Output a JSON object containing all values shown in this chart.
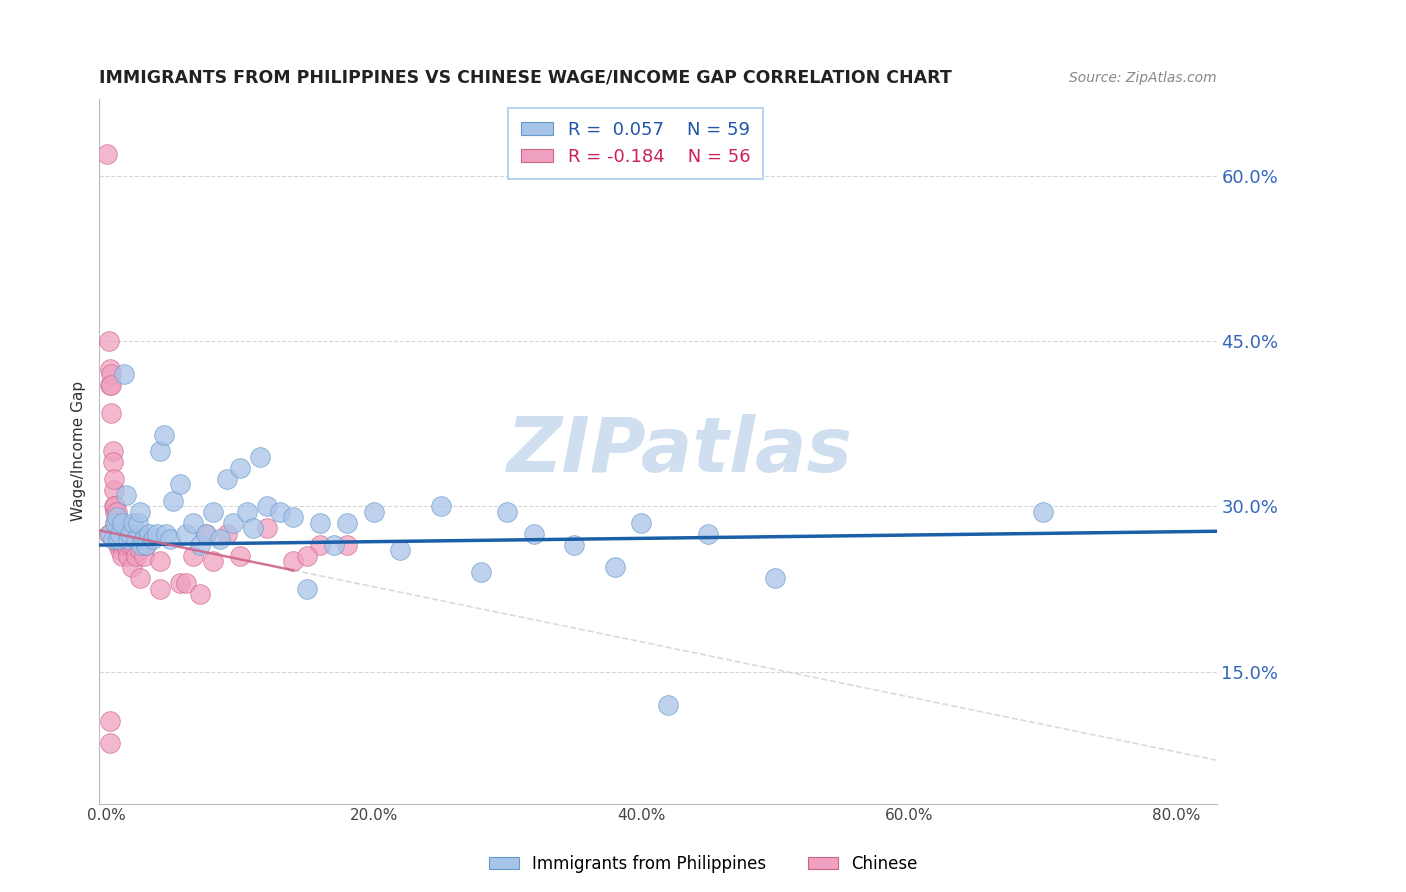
{
  "title": "IMMIGRANTS FROM PHILIPPINES VS CHINESE WAGE/INCOME GAP CORRELATION CHART",
  "source": "Source: ZipAtlas.com",
  "ylabel": "Wage/Income Gap",
  "xlabel_ticks": [
    "0.0%",
    "20.0%",
    "40.0%",
    "60.0%",
    "80.0%"
  ],
  "xlabel_vals": [
    0.0,
    0.2,
    0.4,
    0.6,
    0.8
  ],
  "ylabel_ticks": [
    "15.0%",
    "30.0%",
    "45.0%",
    "60.0%"
  ],
  "ylabel_vals": [
    0.15,
    0.3,
    0.45,
    0.6
  ],
  "ymin": 0.03,
  "ymax": 0.67,
  "xmin": -0.005,
  "xmax": 0.83,
  "r_blue": 0.057,
  "n_blue": 59,
  "r_pink": -0.184,
  "n_pink": 56,
  "blue_color": "#a8c4e8",
  "pink_color": "#f0a0c0",
  "trendline_blue_color": "#1a5fa8",
  "trendline_pink_color": "#cc6688",
  "trendline_pink_ext_color": "#cccccc",
  "watermark_color": "#d0dff0",
  "blue_scatter_x": [
    0.003,
    0.005,
    0.007,
    0.008,
    0.009,
    0.01,
    0.012,
    0.013,
    0.015,
    0.016,
    0.018,
    0.02,
    0.022,
    0.024,
    0.025,
    0.026,
    0.028,
    0.03,
    0.032,
    0.035,
    0.038,
    0.04,
    0.043,
    0.045,
    0.048,
    0.05,
    0.055,
    0.06,
    0.065,
    0.07,
    0.075,
    0.08,
    0.085,
    0.09,
    0.095,
    0.1,
    0.105,
    0.11,
    0.115,
    0.12,
    0.13,
    0.14,
    0.15,
    0.16,
    0.17,
    0.18,
    0.2,
    0.22,
    0.25,
    0.28,
    0.3,
    0.32,
    0.35,
    0.38,
    0.4,
    0.42,
    0.45,
    0.5,
    0.7
  ],
  "blue_scatter_y": [
    0.275,
    0.27,
    0.285,
    0.29,
    0.27,
    0.275,
    0.285,
    0.42,
    0.31,
    0.27,
    0.275,
    0.285,
    0.27,
    0.285,
    0.295,
    0.265,
    0.27,
    0.265,
    0.275,
    0.27,
    0.275,
    0.35,
    0.365,
    0.275,
    0.27,
    0.305,
    0.32,
    0.275,
    0.285,
    0.265,
    0.275,
    0.295,
    0.27,
    0.325,
    0.285,
    0.335,
    0.295,
    0.28,
    0.345,
    0.3,
    0.295,
    0.29,
    0.225,
    0.285,
    0.265,
    0.285,
    0.295,
    0.26,
    0.3,
    0.24,
    0.295,
    0.275,
    0.265,
    0.245,
    0.285,
    0.12,
    0.275,
    0.235,
    0.295
  ],
  "pink_scatter_x": [
    0.001,
    0.002,
    0.002,
    0.003,
    0.003,
    0.004,
    0.004,
    0.004,
    0.005,
    0.005,
    0.006,
    0.006,
    0.006,
    0.007,
    0.007,
    0.007,
    0.008,
    0.008,
    0.008,
    0.009,
    0.009,
    0.01,
    0.01,
    0.01,
    0.011,
    0.012,
    0.013,
    0.014,
    0.015,
    0.016,
    0.018,
    0.019,
    0.02,
    0.022,
    0.025,
    0.025,
    0.028,
    0.03,
    0.04,
    0.055,
    0.06,
    0.065,
    0.07,
    0.075,
    0.09,
    0.1,
    0.12,
    0.14,
    0.16,
    0.18,
    0.025,
    0.08,
    0.15,
    0.04,
    0.003,
    0.003
  ],
  "pink_scatter_y": [
    0.62,
    0.275,
    0.45,
    0.41,
    0.425,
    0.385,
    0.42,
    0.41,
    0.35,
    0.34,
    0.315,
    0.325,
    0.3,
    0.295,
    0.285,
    0.3,
    0.285,
    0.275,
    0.295,
    0.265,
    0.28,
    0.275,
    0.265,
    0.26,
    0.265,
    0.255,
    0.275,
    0.265,
    0.265,
    0.255,
    0.265,
    0.245,
    0.265,
    0.255,
    0.26,
    0.275,
    0.255,
    0.265,
    0.25,
    0.23,
    0.23,
    0.255,
    0.22,
    0.275,
    0.275,
    0.255,
    0.28,
    0.25,
    0.265,
    0.265,
    0.235,
    0.25,
    0.255,
    0.225,
    0.105,
    0.085
  ],
  "legend_entries": [
    {
      "label": "Immigrants from Philippines",
      "color": "#a8c4e8"
    },
    {
      "label": "Chinese",
      "color": "#f0a0c0"
    }
  ]
}
